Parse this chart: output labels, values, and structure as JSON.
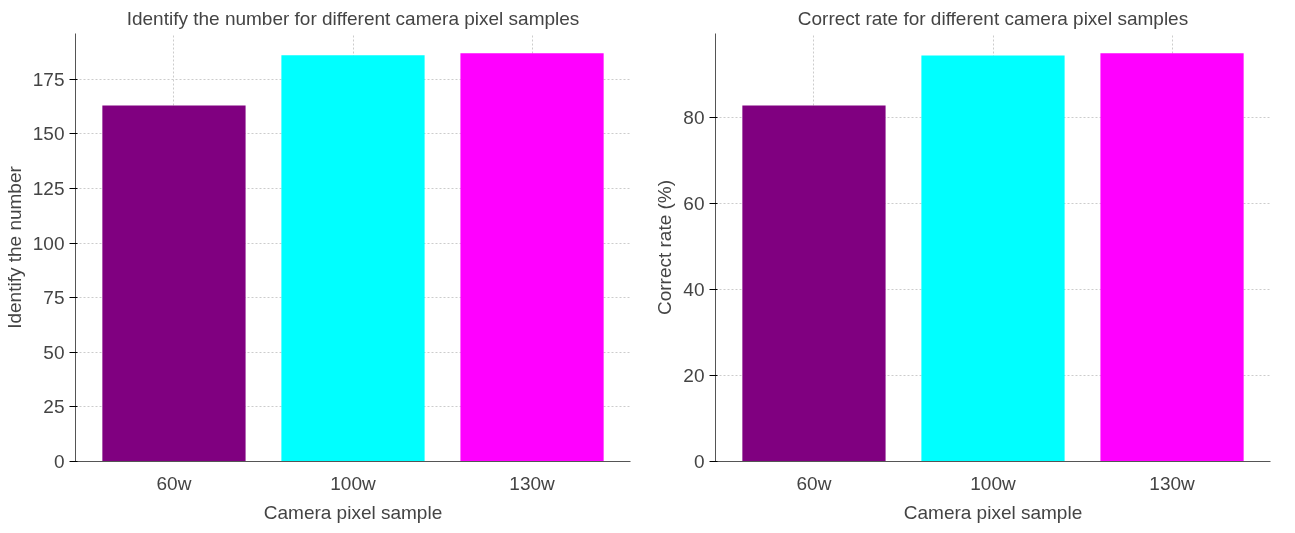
{
  "chart_data": [
    {
      "type": "bar",
      "title": "Identify the number for different camera pixel samples",
      "xlabel": "Camera pixel sample",
      "ylabel": "Identify the number",
      "categories": [
        "60w",
        "100w",
        "130w"
      ],
      "values": [
        163,
        186,
        187
      ],
      "colors": [
        "#800080",
        "#00ffff",
        "#ff00ff"
      ],
      "ylim": [
        0,
        196
      ],
      "yticks": [
        0,
        25,
        50,
        75,
        100,
        125,
        150,
        175
      ],
      "grid": true
    },
    {
      "type": "bar",
      "title": "Correct rate for different camera pixel samples",
      "xlabel": "Camera pixel sample",
      "ylabel": "Correct rate (%)",
      "categories": [
        "60w",
        "100w",
        "130w"
      ],
      "values": [
        82.7,
        94.3,
        94.8
      ],
      "colors": [
        "#800080",
        "#00ffff",
        "#ff00ff"
      ],
      "ylim": [
        0,
        99.4
      ],
      "yticks": [
        0,
        20,
        40,
        60,
        80
      ],
      "grid": true
    }
  ]
}
